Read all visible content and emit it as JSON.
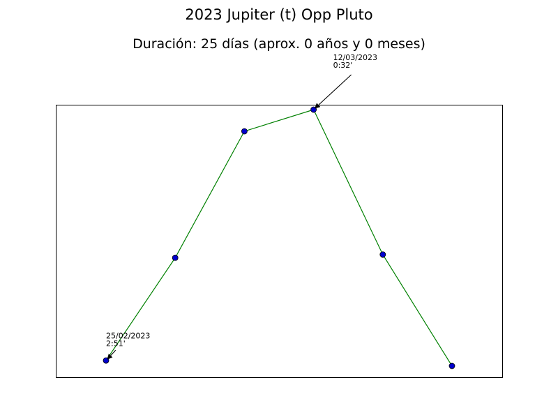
{
  "chart_data": {
    "type": "line",
    "title": "2023 Jupiter (t) Opp Pluto",
    "subtitle": "Duración: 25 días (aprox. 0 años y 0 meses)",
    "xlabel": "",
    "ylabel": "",
    "grid": false,
    "axes_ticks_visible": false,
    "line_color": "#008000",
    "marker_color": "#0000cc",
    "marker_edge_color": "#000000",
    "series": [
      {
        "points": [
          {
            "x": "2023-02-25",
            "orb_deg": 2.85
          },
          {
            "x": "2023-03-02",
            "orb_deg": 1.9
          },
          {
            "x": "2023-03-07",
            "orb_deg": 0.73
          },
          {
            "x": "2023-03-12",
            "orb_deg": 0.53
          },
          {
            "x": "2023-03-17",
            "orb_deg": 1.87
          },
          {
            "x": "2023-03-22",
            "orb_deg": 2.9
          }
        ]
      }
    ],
    "annotations": [
      {
        "point_index": 0,
        "date": "25/02/2023",
        "orb": "2:51'"
      },
      {
        "point_index": 3,
        "date": "12/03/2023",
        "orb": "0:32'"
      }
    ]
  }
}
